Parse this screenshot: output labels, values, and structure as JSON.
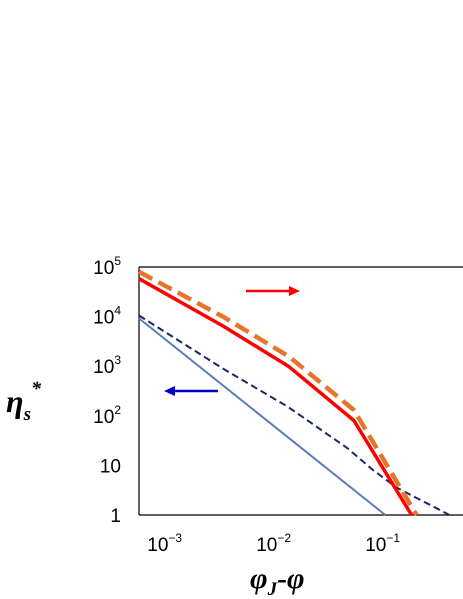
{
  "chart_data": {
    "type": "line",
    "title": "",
    "xlabel": {
      "main": "φ",
      "subscript": "J",
      "suffix": "-φ"
    },
    "ylabel": {
      "main": "η",
      "subscript": "s",
      "superscript": "*"
    },
    "x_scale": "log",
    "y_scale": "log",
    "xlim": [
      0.00085,
      0.8
    ],
    "ylim": [
      1,
      100000
    ],
    "x_ticks": [
      {
        "value": 0.001,
        "base": "10",
        "exp": "−3"
      },
      {
        "value": 0.01,
        "base": "10",
        "exp": "−2"
      },
      {
        "value": 0.1,
        "base": "10",
        "exp": "−1"
      }
    ],
    "y_ticks": [
      {
        "value": 1,
        "base": "1",
        "exp": ""
      },
      {
        "value": 10,
        "base": "10",
        "exp": ""
      },
      {
        "value": 100,
        "base": "10",
        "exp": "2"
      },
      {
        "value": 1000,
        "base": "10",
        "exp": "3"
      },
      {
        "value": 10000,
        "base": "10",
        "exp": "4"
      },
      {
        "value": 100000,
        "base": "10",
        "exp": "5"
      }
    ],
    "grid": false,
    "series": [
      {
        "style": "solid-thin",
        "color": "#5b7fb5",
        "x": [
          0.00085,
          0.155
        ],
        "y": [
          9200,
          1
        ]
      },
      {
        "style": "dashed-thin",
        "color": "#1a2a5e",
        "x": [
          0.00085,
          0.005,
          0.02,
          0.07,
          0.12,
          0.2,
          0.3,
          0.45,
          0.6
        ],
        "y": [
          10500,
          900,
          150,
          22,
          8,
          3.5,
          2.2,
          1.4,
          1.0
        ]
      },
      {
        "style": "solid-thick",
        "color": "#ff0000",
        "x": [
          0.00085,
          0.005,
          0.02,
          0.08,
          0.27
        ],
        "y": [
          58000,
          6500,
          1000,
          80,
          1
        ]
      },
      {
        "style": "dashed-thick",
        "color": "#e8742a",
        "x": [
          0.00085,
          0.005,
          0.02,
          0.08,
          0.3
        ],
        "y": [
          80000,
          10000,
          1600,
          130,
          1
        ]
      }
    ],
    "arrows": [
      {
        "color": "#ff0000",
        "direction": "right"
      },
      {
        "color": "#0000cc",
        "direction": "left"
      }
    ]
  }
}
